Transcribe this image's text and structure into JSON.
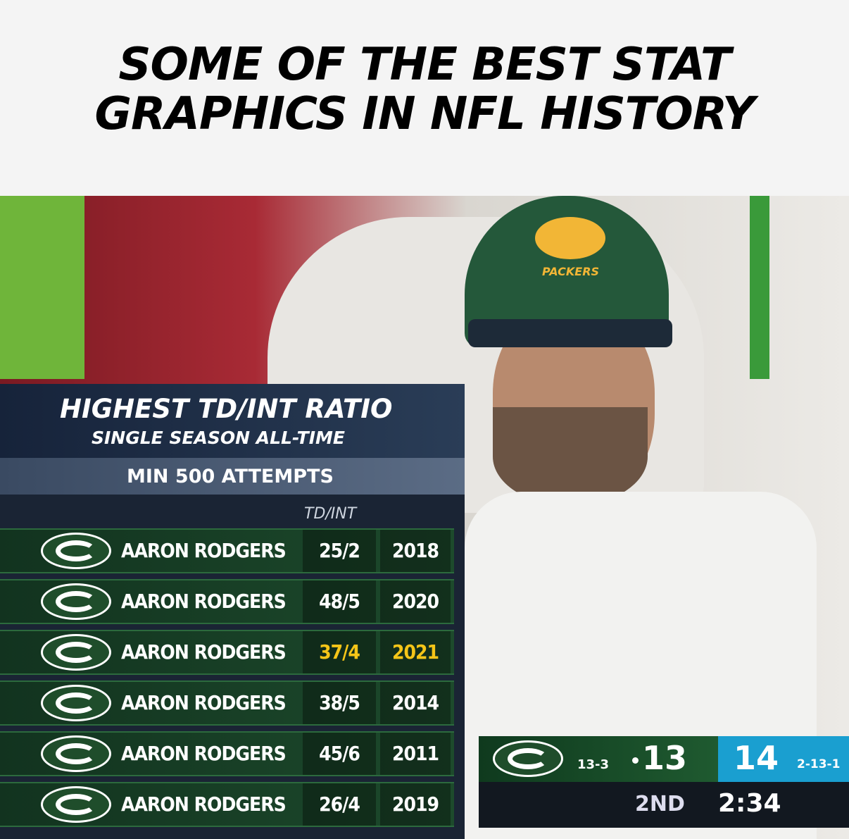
{
  "header": {
    "title_lines": [
      "SOME OF THE BEST STAT",
      "GRAPHICS IN NFL HISTORY"
    ]
  },
  "graphic": {
    "title": "HIGHEST TD/INT RATIO",
    "subtitle": "SINGLE SEASON ALL-TIME",
    "qualifier": "MIN 500 ATTEMPTS",
    "column_header": "TD/INT",
    "rows": [
      [
        "AARON RODGERS",
        "25/2",
        "2018"
      ],
      [
        "AARON RODGERS",
        "48/5",
        "2020"
      ],
      [
        "AARON RODGERS",
        "37/4",
        "2021"
      ],
      [
        "AARON RODGERS",
        "38/5",
        "2014"
      ],
      [
        "AARON RODGERS",
        "45/6",
        "2011"
      ],
      [
        "AARON RODGERS",
        "26/4",
        "2019"
      ]
    ]
  },
  "cap": {
    "text": "PACKERS"
  },
  "scoreboard": {
    "home_record": "13-3",
    "home_score": "13",
    "away_score": "14",
    "away_record": "2-13-1",
    "quarter": "2ND",
    "clock": "2:34"
  }
}
